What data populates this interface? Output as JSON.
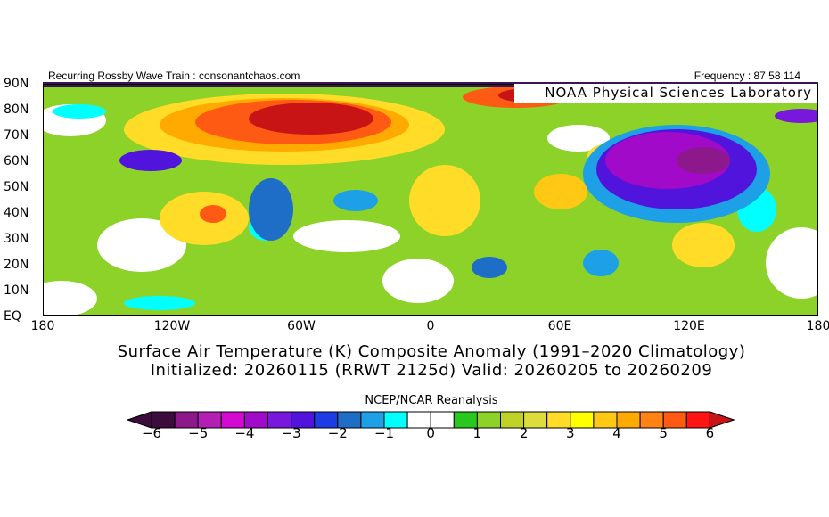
{
  "header": {
    "left": "Recurring Rossby Wave Train : consonantchaos.com",
    "right": "Frequency : 87 58 114",
    "lab": "NOAA Physical Sciences Laboratory"
  },
  "map": {
    "lat_labels": [
      "90N",
      "80N",
      "70N",
      "60N",
      "50N",
      "40N",
      "30N",
      "20N",
      "10N",
      "EQ"
    ],
    "lon_labels": [
      "180",
      "120W",
      "60W",
      "0",
      "60E",
      "120E",
      "180"
    ],
    "background_color": "#8cd228"
  },
  "titles": {
    "line1": "Surface Air Temperature (K) Composite Anomaly (1991–2020 Climatology)",
    "line2": "Initialized: 20260115 (RRWT 2125d) Valid: 20260205 to 20260209"
  },
  "colorbar": {
    "title": "NCEP/NCAR Reanalysis",
    "ticks": [
      "-6",
      "-5",
      "-4",
      "-3",
      "-2",
      "-1",
      "0",
      "1",
      "2",
      "3",
      "4",
      "5",
      "6"
    ],
    "min": -6,
    "max": 6,
    "step": 0.5,
    "colors": [
      "#3c0c3c",
      "#8c188c",
      "#b41eb4",
      "#d20ad2",
      "#a00ac8",
      "#7818dc",
      "#5014dc",
      "#1e3ce6",
      "#1e6ec8",
      "#1ea0e6",
      "#00ffff",
      "#ffffff",
      "#ffffff",
      "#28c81e",
      "#8cd228",
      "#bed228",
      "#dcdc3c",
      "#ffdc28",
      "#ffff00",
      "#ffc814",
      "#ffaa00",
      "#ff8214",
      "#ff5a14",
      "#ff1414"
    ],
    "low_color": "#3c0c3c",
    "high_color": "#c81414"
  }
}
